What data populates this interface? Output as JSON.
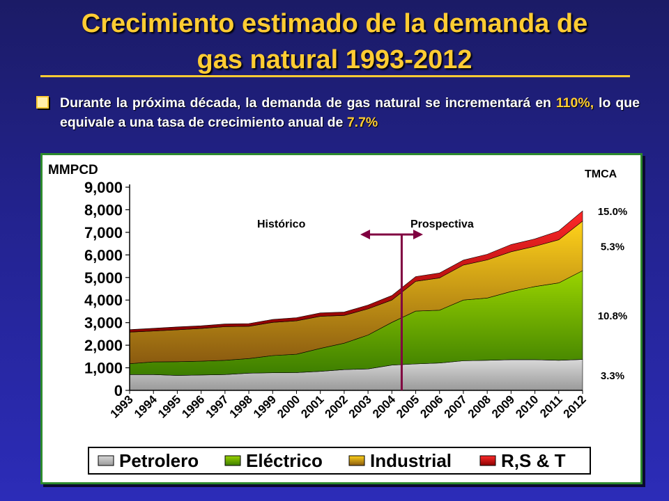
{
  "title": {
    "line1": "Crecimiento estimado de la demanda de",
    "line2": "gas natural 1993-2012"
  },
  "subtitle": {
    "text_a": "Durante la próxima década, la demanda de gas natural se incrementará en ",
    "highlight_a": "110%,",
    "text_b": " lo que equivale a una tasa de crecimiento anual de ",
    "highlight_b": "7.7%"
  },
  "colors": {
    "title": "#ffcc33",
    "petrolero": "#c0c0c0",
    "electrico": "#7ab800",
    "industrial": "#f0b800",
    "rst": "#e00000",
    "divider": "#800040"
  },
  "chart_data": {
    "type": "area",
    "stacked": true,
    "ylabel": "MMPCD",
    "ylim": [
      0,
      9000
    ],
    "yticks": [
      0,
      1000,
      2000,
      3000,
      4000,
      5000,
      6000,
      7000,
      8000,
      9000
    ],
    "ytick_labels": [
      "0",
      "1,000",
      "2,000",
      "3,000",
      "4,000",
      "5,000",
      "6,000",
      "7,000",
      "8,000",
      "9,000"
    ],
    "categories": [
      "1993",
      "1994",
      "1995",
      "1996",
      "1997",
      "1998",
      "1999",
      "2000",
      "2001",
      "2002",
      "2003",
      "2004",
      "2005",
      "2006",
      "2007",
      "2008",
      "2009",
      "2010",
      "2011",
      "2012"
    ],
    "series": [
      {
        "name": "Petrolero",
        "color": "#c0c0c0",
        "values": [
          700,
          700,
          660,
          680,
          700,
          760,
          780,
          790,
          840,
          920,
          950,
          1120,
          1170,
          1210,
          1310,
          1330,
          1360,
          1360,
          1330,
          1370
        ]
      },
      {
        "name": "Eléctrico",
        "color": "#7ab800",
        "values": [
          480,
          560,
          610,
          610,
          630,
          650,
          760,
          810,
          1020,
          1170,
          1500,
          1890,
          2340,
          2340,
          2690,
          2760,
          3020,
          3240,
          3430,
          3930
        ]
      },
      {
        "name": "Industrial",
        "color": "#f0b800",
        "values": [
          1400,
          1370,
          1410,
          1450,
          1490,
          1430,
          1470,
          1480,
          1420,
          1230,
          1160,
          990,
          1320,
          1430,
          1550,
          1690,
          1760,
          1780,
          1910,
          2200
        ]
      },
      {
        "name": "R,S & T",
        "color": "#e00000",
        "values": [
          110,
          120,
          130,
          120,
          120,
          120,
          130,
          140,
          150,
          150,
          170,
          200,
          210,
          220,
          220,
          250,
          320,
          330,
          390,
          450
        ]
      }
    ],
    "divider_label_left": "Histórico",
    "divider_label_right": "Prospectiva",
    "tmca_label": "TMCA",
    "tmca": [
      {
        "series": "R,S & T",
        "value": "15.0%"
      },
      {
        "series": "Industrial",
        "value": "5.3%"
      },
      {
        "series": "Eléctrico",
        "value": "10.8%"
      },
      {
        "series": "Petrolero",
        "value": "3.3%"
      }
    ],
    "legend": [
      "Petrolero",
      "Eléctrico",
      "Industrial",
      "R,S & T"
    ],
    "legend_position": "bottom",
    "grid": false
  }
}
